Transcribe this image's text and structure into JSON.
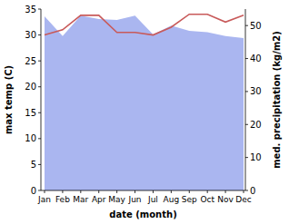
{
  "chart_data": {
    "type": "line",
    "categories": [
      "Jan",
      "Feb",
      "Mar",
      "Apr",
      "May",
      "Jun",
      "Jul",
      "Aug",
      "Sep",
      "Oct",
      "Nov",
      "Dec"
    ],
    "x_label": "date (month)",
    "y_label": "max temp (C)",
    "y2_label": "med. precipitation (kg/m2)",
    "ylim": [
      0,
      35
    ],
    "yticks": [
      0,
      5,
      10,
      15,
      20,
      25,
      30,
      35
    ],
    "y2lim": [
      0,
      55
    ],
    "y2ticks": [
      0,
      10,
      20,
      30,
      40,
      50
    ],
    "series": [
      {
        "name": "med. precipitation",
        "type": "area",
        "axis": "y2",
        "color": "#aab6f0",
        "values": [
          52.8,
          46.8,
          53,
          52,
          51.7,
          53,
          47.3,
          50,
          48.4,
          48,
          46.8,
          46.2
        ]
      },
      {
        "name": "max temp",
        "type": "line",
        "color": "#c85a5a",
        "values": [
          30,
          31,
          33.8,
          33.8,
          30.5,
          30.5,
          30,
          31.5,
          34,
          34,
          32.5,
          33.8
        ]
      }
    ]
  }
}
